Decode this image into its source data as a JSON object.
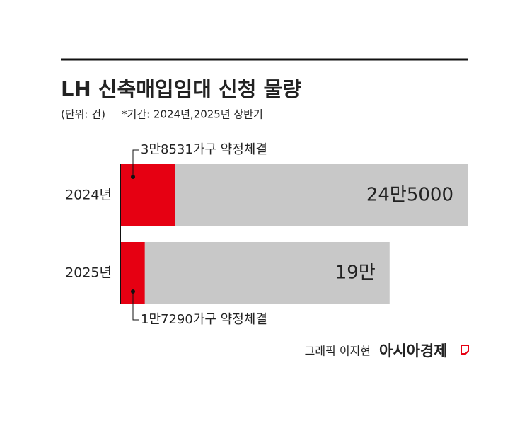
{
  "chart_data": {
    "type": "bar",
    "title": "LH 신축매입임대 신청 물량",
    "subtitle": "(단위: 건)",
    "note": "*기간: 2024년,2025년 상반기",
    "categories": [
      "2024년",
      "2025년"
    ],
    "series": [
      {
        "color": "#c8c8c8",
        "values": [
          245000,
          190000
        ],
        "value_labels": [
          "24만5000",
          "19만"
        ]
      },
      {
        "color": "#e60012",
        "values": [
          38531,
          17290
        ],
        "value_labels": [
          "3만8531가구 약정체결",
          "1만7290가구 약정체결"
        ]
      }
    ],
    "credit": "그래픽 이지현",
    "source": "아시아경제"
  }
}
